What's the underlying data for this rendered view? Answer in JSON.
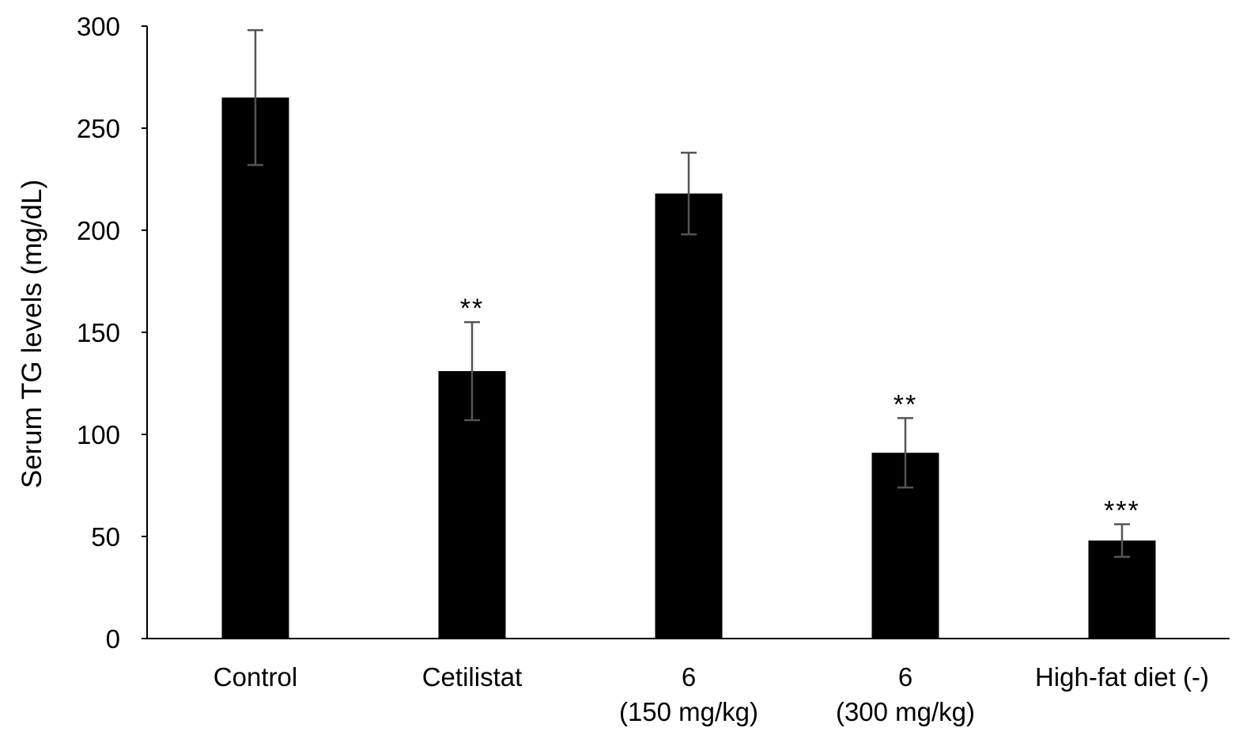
{
  "chart_data": {
    "type": "bar",
    "title": "",
    "xlabel": "",
    "ylabel": "Serum TG levels (mg/dL)",
    "ylim": [
      0,
      300
    ],
    "yticks": [
      0,
      50,
      100,
      150,
      200,
      250,
      300
    ],
    "grid": false,
    "legend": "none",
    "categories": [
      {
        "lines": [
          "Control"
        ]
      },
      {
        "lines": [
          "Cetilistat"
        ]
      },
      {
        "lines": [
          "6",
          "(150 mg/kg)"
        ]
      },
      {
        "lines": [
          "6",
          "(300 mg/kg)"
        ]
      },
      {
        "lines": [
          "High-fat diet (-)"
        ]
      }
    ],
    "series": [
      {
        "name": "Serum TG",
        "values": [
          265,
          131,
          218,
          91,
          48
        ],
        "errors": [
          33,
          24,
          20,
          17,
          8
        ],
        "significance": [
          "",
          "**",
          "",
          "**",
          "***"
        ]
      }
    ],
    "colors": {
      "bar": "#000000",
      "error_bar": "#555555",
      "axis": "#000000"
    }
  }
}
